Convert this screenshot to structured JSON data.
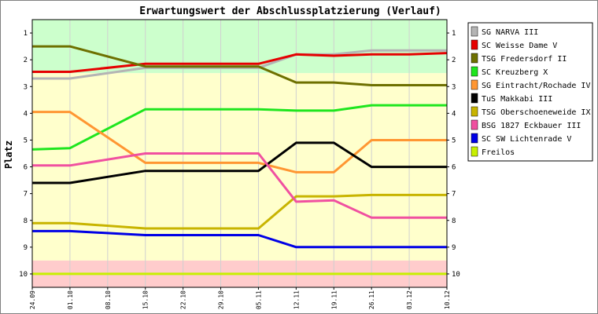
{
  "chart_data": {
    "type": "line",
    "title": "Erwartungswert der Abschlussplatzierung (Verlauf)",
    "ylabel": "Platz",
    "xlabel": "",
    "x": [
      "24.09",
      "01.10",
      "08.10",
      "15.10",
      "22.10",
      "29.10",
      "05.11",
      "12.11",
      "19.11",
      "26.11",
      "03.12",
      "10.12"
    ],
    "y_ticks": [
      "1",
      "2",
      "3",
      "4",
      "5",
      "6",
      "7",
      "8",
      "9",
      "10"
    ],
    "ylim": [
      10.5,
      0.5
    ],
    "bands": [
      {
        "from": 0.5,
        "to": 2.5,
        "color": "#ccffcc"
      },
      {
        "from": 2.5,
        "to": 9.5,
        "color": "#ffffcc"
      },
      {
        "from": 9.5,
        "to": 10.5,
        "color": "#ffcccc"
      }
    ],
    "legend_position": "right",
    "series": [
      {
        "name": "SG NARVA III",
        "color": "#b4b4b4",
        "values": [
          2.7,
          2.7,
          null,
          2.3,
          2.3,
          2.3,
          2.3,
          1.8,
          1.8,
          1.65,
          1.65,
          1.65
        ]
      },
      {
        "name": "SC Weisse Dame V",
        "color": "#e60000",
        "values": [
          2.45,
          2.45,
          null,
          2.15,
          2.15,
          2.15,
          2.15,
          1.8,
          1.85,
          1.8,
          1.8,
          1.75
        ]
      },
      {
        "name": "TSG Fredersdorf II",
        "color": "#6e7000",
        "values": [
          1.5,
          1.5,
          null,
          2.25,
          2.25,
          2.25,
          2.25,
          2.85,
          2.85,
          2.95,
          2.95,
          2.95
        ]
      },
      {
        "name": "SC Kreuzberg X",
        "color": "#1ee61e",
        "values": [
          5.35,
          5.3,
          null,
          3.85,
          3.85,
          3.85,
          3.85,
          3.9,
          3.9,
          3.7,
          3.7,
          3.7
        ]
      },
      {
        "name": "SG Eintracht/Rochade IV",
        "color": "#ff9632",
        "values": [
          3.95,
          3.95,
          null,
          5.85,
          5.85,
          5.85,
          5.85,
          6.2,
          6.2,
          5.0,
          5.0,
          5.0
        ]
      },
      {
        "name": "TuS Makkabi III",
        "color": "#000000",
        "values": [
          6.6,
          6.6,
          null,
          6.15,
          6.15,
          6.15,
          6.15,
          5.1,
          5.1,
          6.0,
          6.0,
          6.0
        ]
      },
      {
        "name": "TSG Oberschoeneweide IX",
        "color": "#c8b400",
        "values": [
          8.1,
          8.1,
          null,
          8.3,
          8.3,
          8.3,
          8.3,
          7.1,
          7.1,
          7.05,
          7.05,
          7.05
        ]
      },
      {
        "name": "BSG 1827 Eckbauer III",
        "color": "#f050a0",
        "values": [
          5.95,
          5.95,
          null,
          5.5,
          5.5,
          5.5,
          5.5,
          7.3,
          7.25,
          7.9,
          7.9,
          7.9
        ]
      },
      {
        "name": "SC SW Lichtenrade V",
        "color": "#0000e6",
        "values": [
          8.4,
          8.4,
          null,
          8.55,
          8.55,
          8.55,
          8.55,
          9.0,
          9.0,
          9.0,
          9.0,
          9.0
        ]
      },
      {
        "name": "Freilos",
        "color": "#c8f000",
        "values": [
          10,
          10,
          10,
          10,
          10,
          10,
          10,
          10,
          10,
          10,
          10,
          10
        ]
      }
    ]
  }
}
